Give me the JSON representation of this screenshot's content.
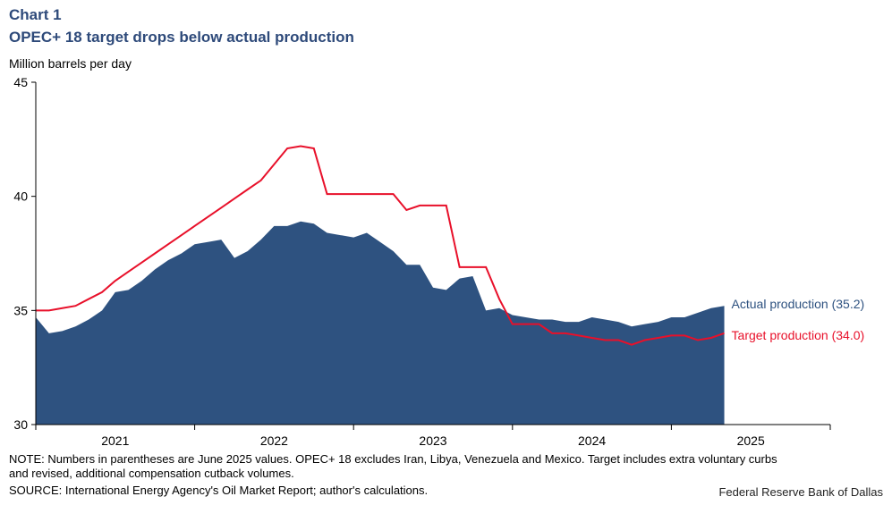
{
  "chart_data": {
    "type": "area_line",
    "kicker": "Chart 1",
    "title": "OPEC+ 18 target drops below actual production",
    "y_label": "Million barrels per day",
    "x": [
      2021.0,
      2021.083,
      2021.167,
      2021.25,
      2021.333,
      2021.417,
      2021.5,
      2021.583,
      2021.667,
      2021.75,
      2021.833,
      2021.917,
      2022.0,
      2022.083,
      2022.167,
      2022.25,
      2022.333,
      2022.417,
      2022.5,
      2022.583,
      2022.667,
      2022.75,
      2022.833,
      2022.917,
      2023.0,
      2023.083,
      2023.167,
      2023.25,
      2023.333,
      2023.417,
      2023.5,
      2023.583,
      2023.667,
      2023.75,
      2023.833,
      2023.917,
      2024.0,
      2024.083,
      2024.167,
      2024.25,
      2024.333,
      2024.417,
      2024.5,
      2024.583,
      2024.667,
      2024.75,
      2024.833,
      2024.917,
      2025.0,
      2025.083,
      2025.167,
      2025.25,
      2025.333
    ],
    "series": [
      {
        "name": "Actual production",
        "color": "#2e5280",
        "kind": "area",
        "values": [
          34.7,
          34.0,
          34.1,
          34.3,
          34.6,
          35.0,
          35.8,
          35.9,
          36.3,
          36.8,
          37.2,
          37.5,
          37.9,
          38.0,
          38.1,
          37.3,
          37.6,
          38.1,
          38.7,
          38.7,
          38.9,
          38.8,
          38.4,
          38.3,
          38.2,
          38.4,
          38.0,
          37.6,
          37.0,
          37.0,
          36.0,
          35.9,
          36.4,
          36.5,
          35.0,
          35.1,
          34.8,
          34.7,
          34.6,
          34.6,
          34.5,
          34.5,
          34.7,
          34.6,
          34.5,
          34.3,
          34.4,
          34.5,
          34.7,
          34.7,
          34.9,
          35.1,
          35.2
        ],
        "label": "Actual production (35.2)"
      },
      {
        "name": "Target production",
        "color": "#e8102a",
        "kind": "line",
        "values": [
          35.0,
          35.0,
          35.1,
          35.2,
          35.5,
          35.8,
          36.3,
          36.7,
          37.1,
          37.5,
          37.9,
          38.3,
          38.7,
          39.1,
          39.5,
          39.9,
          40.3,
          40.7,
          41.4,
          42.1,
          42.2,
          42.1,
          40.1,
          40.1,
          40.1,
          40.1,
          40.1,
          40.1,
          39.4,
          39.6,
          39.6,
          39.6,
          36.9,
          36.9,
          36.9,
          35.5,
          34.4,
          34.4,
          34.4,
          34.0,
          34.0,
          33.9,
          33.8,
          33.7,
          33.7,
          33.5,
          33.7,
          33.8,
          33.9,
          33.9,
          33.7,
          33.8,
          34.0
        ],
        "label": "Target production (34.0)"
      }
    ],
    "xlim": [
      2021,
      2026
    ],
    "xticks": [
      2021,
      2022,
      2023,
      2024,
      2025,
      2026
    ],
    "xlabels": [
      {
        "value": 2021.5,
        "label": "2021"
      },
      {
        "value": 2022.5,
        "label": "2022"
      },
      {
        "value": 2023.5,
        "label": "2023"
      },
      {
        "value": 2024.5,
        "label": "2024"
      },
      {
        "value": 2025.5,
        "label": "2025"
      }
    ],
    "ylim": [
      30,
      45
    ],
    "yticks": [
      30,
      35,
      40,
      45
    ],
    "note": "NOTE: Numbers in parentheses are June 2025 values. OPEC+ 18 excludes Iran, Libya, Venezuela and Mexico. Target includes extra voluntary curbs",
    "note2": "and revised, additional compensation cutback volumes.",
    "source": "SOURCE: International Energy Agency's Oil Market Report; author's calculations.",
    "credit": "Federal Reserve Bank of Dallas"
  }
}
